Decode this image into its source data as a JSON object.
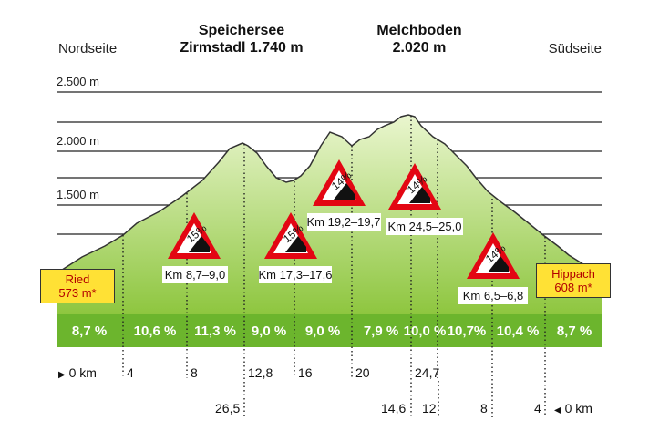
{
  "header": {
    "north": "Nordseite",
    "south": "Südseite",
    "peak1": {
      "name": "Speichersee",
      "elev": "Zirmstadl 1.740 m"
    },
    "peak2": {
      "name": "Melchboden",
      "elev": "2.020 m"
    }
  },
  "altitude_labels": [
    "2.500 m",
    "2.000 m",
    "1.500 m"
  ],
  "towns": {
    "left": {
      "name": "Ried",
      "elev": "573 m*"
    },
    "right": {
      "name": "Hippach",
      "elev": "608 m*"
    }
  },
  "gradient_signs": [
    {
      "pct": "15%",
      "range": "Km 8,7–9,0"
    },
    {
      "pct": "15%",
      "range": "Km 17,3–17,6"
    },
    {
      "pct": "14%",
      "range": "Km 19,2–19,7"
    },
    {
      "pct": "14%",
      "range": "Km 24,5–25,0"
    },
    {
      "pct": "14%",
      "range": "Km 6,5–6,8"
    }
  ],
  "segments": [
    "8,7 %",
    "10,6 %",
    "11,3 %",
    "9,0 %",
    "9,0 %",
    "7,9 %",
    "10,0 %",
    "10,7%",
    "10,4 %",
    "8,7 %"
  ],
  "km_north": {
    "start": "0 km",
    "marks": [
      "4",
      "8",
      "12,8",
      "16",
      "20",
      "24,7"
    ]
  },
  "km_north_extra": "26,5",
  "km_south": {
    "end": "0 km",
    "marks": [
      "14,6",
      "12",
      "8",
      "4"
    ]
  },
  "colors": {
    "fill_top": "#e4f4c2",
    "fill_bottom": "#8ec63f",
    "band": "#6cb52d",
    "warning_red": "#e30613",
    "town_yellow": "#ffe135"
  }
}
